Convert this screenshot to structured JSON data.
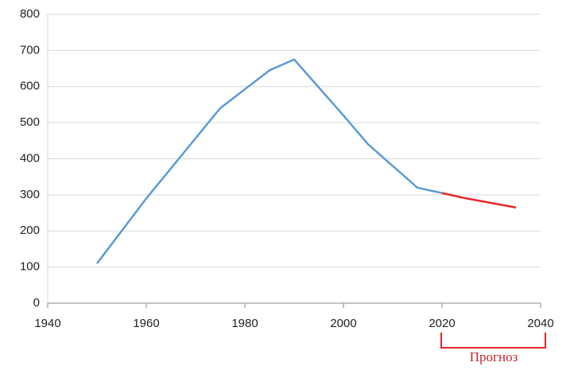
{
  "chart_data": {
    "type": "line",
    "series": [
      {
        "color": "#5b9bd5",
        "x": [
          1950,
          1960,
          1975,
          1985,
          1990,
          2000,
          2005,
          2015,
          2020
        ],
        "values": [
          110,
          290,
          540,
          645,
          675,
          520,
          440,
          320,
          305
        ]
      },
      {
        "color": "#e8262a",
        "x": [
          2020,
          2025,
          2035
        ],
        "values": [
          305,
          290,
          265
        ]
      }
    ],
    "xlim": [
      1940,
      2040
    ],
    "xticks": [
      1940,
      1960,
      1980,
      2000,
      2020,
      2040
    ],
    "ylim": [
      0,
      800
    ],
    "yticks": [
      0,
      100,
      200,
      300,
      400,
      500,
      600,
      700,
      800
    ],
    "grid": true,
    "annotation": "Прогноз"
  }
}
